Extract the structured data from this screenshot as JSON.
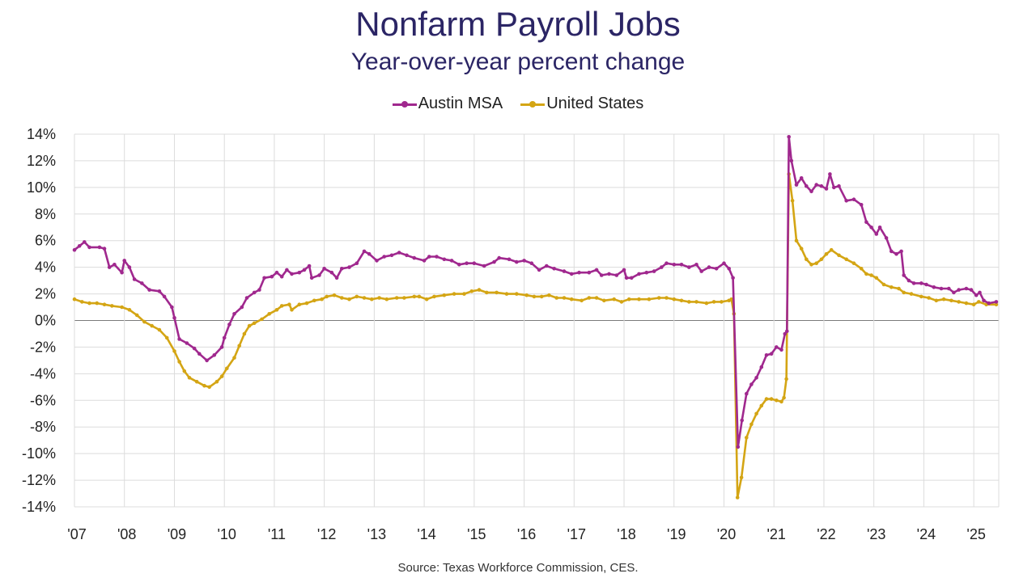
{
  "title": "Nonfarm Payroll Jobs",
  "subtitle": "Year-over-year percent change",
  "source": "Source: Texas Workforce Commission, CES.",
  "chart_data": {
    "type": "line",
    "title": "Nonfarm Payroll Jobs",
    "subtitle": "Year-over-year percent change",
    "xlabel": "",
    "ylabel": "",
    "ylim": [
      -14,
      14
    ],
    "xlim": [
      2007.0,
      2025.5
    ],
    "grid": true,
    "legend_position": "top-center",
    "y_tick_labels": [
      "14%",
      "12%",
      "10%",
      "8%",
      "6%",
      "4%",
      "2%",
      "0%",
      "-2%",
      "-4%",
      "-6%",
      "-8%",
      "-10%",
      "-12%",
      "-14%"
    ],
    "y_ticks": [
      14,
      12,
      10,
      8,
      6,
      4,
      2,
      0,
      -2,
      -4,
      -6,
      -8,
      -10,
      -12,
      -14
    ],
    "x_tick_labels": [
      "'07",
      "'08",
      "'09",
      "'10",
      "'11",
      "'12",
      "'13",
      "'14",
      "'15",
      "'16",
      "'17",
      "'18",
      "'19",
      "'20",
      "'21",
      "'22",
      "'23",
      "'24",
      "'25"
    ],
    "x_ticks": [
      2007,
      2008,
      2009,
      2010,
      2011,
      2012,
      2013,
      2014,
      2015,
      2016,
      2017,
      2018,
      2019,
      2020,
      2021,
      2022,
      2023,
      2024,
      2025
    ],
    "series": [
      {
        "name": "Austin MSA",
        "color": "#a0288e",
        "points": [
          [
            2007.0,
            5.3
          ],
          [
            2007.1,
            5.6
          ],
          [
            2007.2,
            5.9
          ],
          [
            2007.3,
            5.5
          ],
          [
            2007.5,
            5.5
          ],
          [
            2007.6,
            5.4
          ],
          [
            2007.7,
            4.0
          ],
          [
            2007.8,
            4.2
          ],
          [
            2007.95,
            3.6
          ],
          [
            2008.0,
            4.5
          ],
          [
            2008.1,
            4.0
          ],
          [
            2008.2,
            3.1
          ],
          [
            2008.35,
            2.8
          ],
          [
            2008.5,
            2.3
          ],
          [
            2008.7,
            2.2
          ],
          [
            2008.8,
            1.8
          ],
          [
            2008.95,
            1.0
          ],
          [
            2009.0,
            0.2
          ],
          [
            2009.1,
            -1.4
          ],
          [
            2009.25,
            -1.7
          ],
          [
            2009.4,
            -2.1
          ],
          [
            2009.5,
            -2.5
          ],
          [
            2009.65,
            -3.0
          ],
          [
            2009.8,
            -2.6
          ],
          [
            2009.95,
            -2.0
          ],
          [
            2010.0,
            -1.3
          ],
          [
            2010.1,
            -0.3
          ],
          [
            2010.2,
            0.5
          ],
          [
            2010.35,
            1.0
          ],
          [
            2010.45,
            1.7
          ],
          [
            2010.6,
            2.1
          ],
          [
            2010.7,
            2.3
          ],
          [
            2010.8,
            3.2
          ],
          [
            2010.95,
            3.3
          ],
          [
            2011.05,
            3.6
          ],
          [
            2011.15,
            3.3
          ],
          [
            2011.25,
            3.8
          ],
          [
            2011.35,
            3.5
          ],
          [
            2011.5,
            3.6
          ],
          [
            2011.6,
            3.8
          ],
          [
            2011.7,
            4.1
          ],
          [
            2011.75,
            3.2
          ],
          [
            2011.9,
            3.4
          ],
          [
            2012.0,
            3.9
          ],
          [
            2012.15,
            3.6
          ],
          [
            2012.25,
            3.2
          ],
          [
            2012.35,
            3.9
          ],
          [
            2012.5,
            4.0
          ],
          [
            2012.65,
            4.3
          ],
          [
            2012.8,
            5.2
          ],
          [
            2012.9,
            5.0
          ],
          [
            2013.05,
            4.5
          ],
          [
            2013.2,
            4.8
          ],
          [
            2013.35,
            4.9
          ],
          [
            2013.5,
            5.1
          ],
          [
            2013.65,
            4.9
          ],
          [
            2013.8,
            4.7
          ],
          [
            2014.0,
            4.5
          ],
          [
            2014.1,
            4.8
          ],
          [
            2014.25,
            4.8
          ],
          [
            2014.4,
            4.6
          ],
          [
            2014.55,
            4.5
          ],
          [
            2014.7,
            4.2
          ],
          [
            2014.85,
            4.3
          ],
          [
            2015.0,
            4.3
          ],
          [
            2015.2,
            4.1
          ],
          [
            2015.4,
            4.4
          ],
          [
            2015.5,
            4.7
          ],
          [
            2015.7,
            4.6
          ],
          [
            2015.85,
            4.4
          ],
          [
            2016.0,
            4.5
          ],
          [
            2016.15,
            4.3
          ],
          [
            2016.3,
            3.8
          ],
          [
            2016.45,
            4.1
          ],
          [
            2016.6,
            3.9
          ],
          [
            2016.8,
            3.7
          ],
          [
            2016.95,
            3.5
          ],
          [
            2017.1,
            3.6
          ],
          [
            2017.3,
            3.6
          ],
          [
            2017.45,
            3.8
          ],
          [
            2017.55,
            3.4
          ],
          [
            2017.7,
            3.5
          ],
          [
            2017.85,
            3.4
          ],
          [
            2018.0,
            3.8
          ],
          [
            2018.05,
            3.2
          ],
          [
            2018.15,
            3.2
          ],
          [
            2018.3,
            3.5
          ],
          [
            2018.45,
            3.6
          ],
          [
            2018.6,
            3.7
          ],
          [
            2018.75,
            4.0
          ],
          [
            2018.85,
            4.3
          ],
          [
            2019.0,
            4.2
          ],
          [
            2019.15,
            4.2
          ],
          [
            2019.3,
            4.0
          ],
          [
            2019.45,
            4.2
          ],
          [
            2019.55,
            3.7
          ],
          [
            2019.7,
            4.0
          ],
          [
            2019.85,
            3.9
          ],
          [
            2020.0,
            4.3
          ],
          [
            2020.1,
            3.9
          ],
          [
            2020.18,
            3.2
          ],
          [
            2020.28,
            -9.5
          ],
          [
            2020.36,
            -7.5
          ],
          [
            2020.45,
            -5.5
          ],
          [
            2020.55,
            -4.8
          ],
          [
            2020.65,
            -4.3
          ],
          [
            2020.75,
            -3.5
          ],
          [
            2020.85,
            -2.6
          ],
          [
            2020.95,
            -2.5
          ],
          [
            2021.05,
            -2.0
          ],
          [
            2021.15,
            -2.2
          ],
          [
            2021.22,
            -1.0
          ],
          [
            2021.26,
            -0.8
          ],
          [
            2021.3,
            13.8
          ],
          [
            2021.35,
            12.0
          ],
          [
            2021.45,
            10.2
          ],
          [
            2021.55,
            10.7
          ],
          [
            2021.65,
            10.1
          ],
          [
            2021.75,
            9.7
          ],
          [
            2021.85,
            10.2
          ],
          [
            2021.95,
            10.1
          ],
          [
            2022.05,
            9.9
          ],
          [
            2022.12,
            11.0
          ],
          [
            2022.2,
            10.0
          ],
          [
            2022.3,
            10.1
          ],
          [
            2022.45,
            9.0
          ],
          [
            2022.6,
            9.1
          ],
          [
            2022.75,
            8.7
          ],
          [
            2022.85,
            7.4
          ],
          [
            2022.95,
            7.0
          ],
          [
            2023.05,
            6.5
          ],
          [
            2023.12,
            7.0
          ],
          [
            2023.25,
            6.2
          ],
          [
            2023.35,
            5.2
          ],
          [
            2023.45,
            5.0
          ],
          [
            2023.55,
            5.2
          ],
          [
            2023.6,
            3.4
          ],
          [
            2023.7,
            3.0
          ],
          [
            2023.8,
            2.8
          ],
          [
            2023.95,
            2.8
          ],
          [
            2024.05,
            2.7
          ],
          [
            2024.2,
            2.5
          ],
          [
            2024.35,
            2.4
          ],
          [
            2024.5,
            2.4
          ],
          [
            2024.6,
            2.1
          ],
          [
            2024.7,
            2.3
          ],
          [
            2024.85,
            2.4
          ],
          [
            2024.95,
            2.3
          ],
          [
            2025.05,
            1.9
          ],
          [
            2025.12,
            2.1
          ],
          [
            2025.2,
            1.5
          ],
          [
            2025.3,
            1.3
          ],
          [
            2025.45,
            1.4
          ]
        ]
      },
      {
        "name": "United States",
        "color": "#d4a514",
        "points": [
          [
            2007.0,
            1.6
          ],
          [
            2007.15,
            1.4
          ],
          [
            2007.3,
            1.3
          ],
          [
            2007.45,
            1.3
          ],
          [
            2007.6,
            1.2
          ],
          [
            2007.75,
            1.1
          ],
          [
            2007.95,
            1.0
          ],
          [
            2008.1,
            0.8
          ],
          [
            2008.25,
            0.4
          ],
          [
            2008.4,
            -0.1
          ],
          [
            2008.55,
            -0.4
          ],
          [
            2008.7,
            -0.7
          ],
          [
            2008.85,
            -1.3
          ],
          [
            2009.0,
            -2.3
          ],
          [
            2009.1,
            -3.1
          ],
          [
            2009.2,
            -3.8
          ],
          [
            2009.3,
            -4.3
          ],
          [
            2009.45,
            -4.6
          ],
          [
            2009.6,
            -4.9
          ],
          [
            2009.7,
            -5.0
          ],
          [
            2009.85,
            -4.6
          ],
          [
            2009.95,
            -4.2
          ],
          [
            2010.05,
            -3.6
          ],
          [
            2010.2,
            -2.8
          ],
          [
            2010.3,
            -1.9
          ],
          [
            2010.4,
            -1.0
          ],
          [
            2010.5,
            -0.4
          ],
          [
            2010.6,
            -0.2
          ],
          [
            2010.75,
            0.1
          ],
          [
            2010.9,
            0.5
          ],
          [
            2011.05,
            0.8
          ],
          [
            2011.15,
            1.1
          ],
          [
            2011.3,
            1.2
          ],
          [
            2011.35,
            0.8
          ],
          [
            2011.5,
            1.2
          ],
          [
            2011.65,
            1.3
          ],
          [
            2011.8,
            1.5
          ],
          [
            2011.95,
            1.6
          ],
          [
            2012.05,
            1.8
          ],
          [
            2012.2,
            1.9
          ],
          [
            2012.35,
            1.7
          ],
          [
            2012.5,
            1.6
          ],
          [
            2012.65,
            1.8
          ],
          [
            2012.8,
            1.7
          ],
          [
            2012.95,
            1.6
          ],
          [
            2013.1,
            1.7
          ],
          [
            2013.25,
            1.6
          ],
          [
            2013.45,
            1.7
          ],
          [
            2013.6,
            1.7
          ],
          [
            2013.8,
            1.8
          ],
          [
            2013.9,
            1.8
          ],
          [
            2014.05,
            1.6
          ],
          [
            2014.2,
            1.8
          ],
          [
            2014.4,
            1.9
          ],
          [
            2014.6,
            2.0
          ],
          [
            2014.8,
            2.0
          ],
          [
            2014.95,
            2.2
          ],
          [
            2015.1,
            2.3
          ],
          [
            2015.25,
            2.1
          ],
          [
            2015.45,
            2.1
          ],
          [
            2015.65,
            2.0
          ],
          [
            2015.85,
            2.0
          ],
          [
            2016.05,
            1.9
          ],
          [
            2016.2,
            1.8
          ],
          [
            2016.35,
            1.8
          ],
          [
            2016.5,
            1.9
          ],
          [
            2016.65,
            1.7
          ],
          [
            2016.8,
            1.7
          ],
          [
            2016.95,
            1.6
          ],
          [
            2017.15,
            1.5
          ],
          [
            2017.3,
            1.7
          ],
          [
            2017.45,
            1.7
          ],
          [
            2017.6,
            1.5
          ],
          [
            2017.8,
            1.6
          ],
          [
            2017.95,
            1.4
          ],
          [
            2018.1,
            1.6
          ],
          [
            2018.3,
            1.6
          ],
          [
            2018.5,
            1.6
          ],
          [
            2018.7,
            1.7
          ],
          [
            2018.85,
            1.7
          ],
          [
            2019.0,
            1.6
          ],
          [
            2019.15,
            1.5
          ],
          [
            2019.3,
            1.4
          ],
          [
            2019.45,
            1.4
          ],
          [
            2019.65,
            1.3
          ],
          [
            2019.8,
            1.4
          ],
          [
            2019.95,
            1.4
          ],
          [
            2020.1,
            1.5
          ],
          [
            2020.15,
            1.6
          ],
          [
            2020.2,
            0.5
          ],
          [
            2020.27,
            -13.3
          ],
          [
            2020.35,
            -11.8
          ],
          [
            2020.45,
            -8.8
          ],
          [
            2020.55,
            -7.8
          ],
          [
            2020.65,
            -7.0
          ],
          [
            2020.75,
            -6.4
          ],
          [
            2020.85,
            -5.9
          ],
          [
            2020.95,
            -5.9
          ],
          [
            2021.05,
            -6.0
          ],
          [
            2021.15,
            -6.1
          ],
          [
            2021.2,
            -5.8
          ],
          [
            2021.25,
            -4.4
          ],
          [
            2021.3,
            11.0
          ],
          [
            2021.37,
            9.0
          ],
          [
            2021.45,
            6.0
          ],
          [
            2021.55,
            5.4
          ],
          [
            2021.65,
            4.6
          ],
          [
            2021.75,
            4.2
          ],
          [
            2021.85,
            4.3
          ],
          [
            2021.95,
            4.6
          ],
          [
            2022.05,
            5.0
          ],
          [
            2022.15,
            5.3
          ],
          [
            2022.3,
            4.9
          ],
          [
            2022.45,
            4.6
          ],
          [
            2022.6,
            4.3
          ],
          [
            2022.75,
            3.9
          ],
          [
            2022.85,
            3.5
          ],
          [
            2022.95,
            3.4
          ],
          [
            2023.05,
            3.2
          ],
          [
            2023.2,
            2.7
          ],
          [
            2023.35,
            2.5
          ],
          [
            2023.5,
            2.4
          ],
          [
            2023.6,
            2.1
          ],
          [
            2023.75,
            2.0
          ],
          [
            2023.95,
            1.8
          ],
          [
            2024.1,
            1.7
          ],
          [
            2024.25,
            1.5
          ],
          [
            2024.4,
            1.6
          ],
          [
            2024.55,
            1.5
          ],
          [
            2024.7,
            1.4
          ],
          [
            2024.85,
            1.3
          ],
          [
            2025.0,
            1.2
          ],
          [
            2025.1,
            1.4
          ],
          [
            2025.25,
            1.2
          ],
          [
            2025.45,
            1.2
          ]
        ]
      }
    ]
  }
}
